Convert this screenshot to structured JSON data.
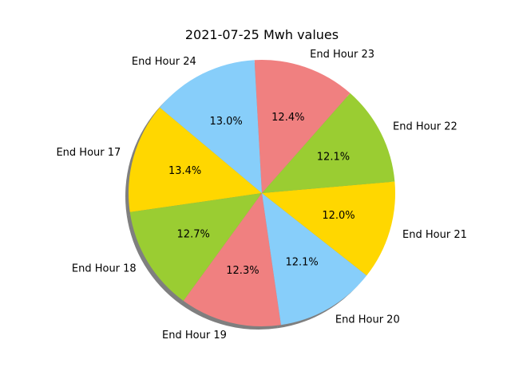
{
  "chart_data": {
    "type": "pie",
    "title": "2021-07-25 Mwh values",
    "categories": [
      "End Hour 17",
      "End Hour 18",
      "End Hour 19",
      "End Hour 20",
      "End Hour 21",
      "End Hour 22",
      "End Hour 23",
      "End Hour 24"
    ],
    "values": [
      13.4,
      12.7,
      12.3,
      12.1,
      12.0,
      12.1,
      12.4,
      13.0
    ],
    "value_labels": [
      "13.4%",
      "12.7%",
      "12.3%",
      "12.1%",
      "12.0%",
      "12.1%",
      "12.4%",
      "13.0%"
    ],
    "colors": [
      "#FFD700",
      "#9ACD32",
      "#F08080",
      "#87CEFA",
      "#FFD700",
      "#9ACD32",
      "#F08080",
      "#87CEFA"
    ],
    "shadow": true,
    "legend": "none"
  }
}
